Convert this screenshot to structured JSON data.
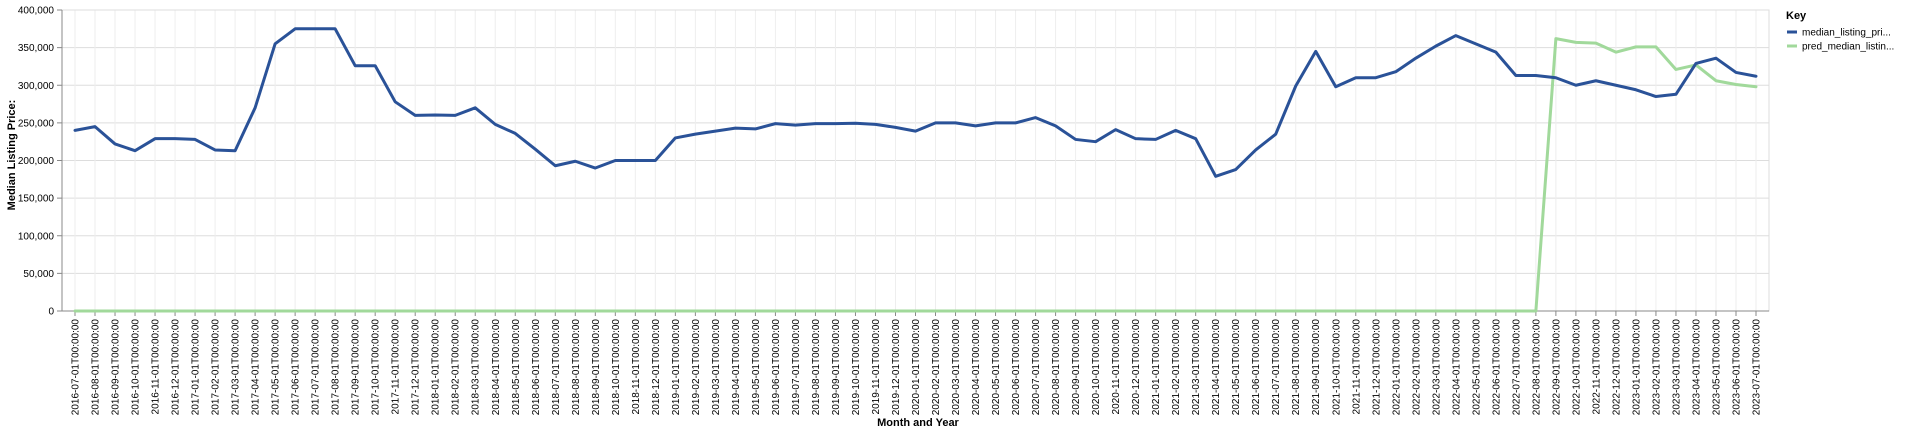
{
  "chart_data": {
    "type": "line",
    "xlabel": "Month and Year",
    "ylabel": "Median Listing Price:",
    "ylim": [
      0,
      400000
    ],
    "yticks": [
      0,
      50000,
      100000,
      150000,
      200000,
      250000,
      300000,
      350000,
      400000
    ],
    "ytick_labels": [
      "0",
      "50,000",
      "100,000",
      "150,000",
      "200,000",
      "250,000",
      "300,000",
      "350,000",
      "400,000"
    ],
    "grid": true,
    "legend": {
      "title": "Key",
      "position": "right"
    },
    "x": [
      "2016-07-01T00:00:00",
      "2016-08-01T00:00:00",
      "2016-09-01T00:00:00",
      "2016-10-01T00:00:00",
      "2016-11-01T00:00:00",
      "2016-12-01T00:00:00",
      "2017-01-01T00:00:00",
      "2017-02-01T00:00:00",
      "2017-03-01T00:00:00",
      "2017-04-01T00:00:00",
      "2017-05-01T00:00:00",
      "2017-06-01T00:00:00",
      "2017-07-01T00:00:00",
      "2017-08-01T00:00:00",
      "2017-09-01T00:00:00",
      "2017-10-01T00:00:00",
      "2017-11-01T00:00:00",
      "2017-12-01T00:00:00",
      "2018-01-01T00:00:00",
      "2018-02-01T00:00:00",
      "2018-03-01T00:00:00",
      "2018-04-01T00:00:00",
      "2018-05-01T00:00:00",
      "2018-06-01T00:00:00",
      "2018-07-01T00:00:00",
      "2018-08-01T00:00:00",
      "2018-09-01T00:00:00",
      "2018-10-01T00:00:00",
      "2018-11-01T00:00:00",
      "2018-12-01T00:00:00",
      "2019-01-01T00:00:00",
      "2019-02-01T00:00:00",
      "2019-03-01T00:00:00",
      "2019-04-01T00:00:00",
      "2019-05-01T00:00:00",
      "2019-06-01T00:00:00",
      "2019-07-01T00:00:00",
      "2019-08-01T00:00:00",
      "2019-09-01T00:00:00",
      "2019-10-01T00:00:00",
      "2019-11-01T00:00:00",
      "2019-12-01T00:00:00",
      "2020-01-01T00:00:00",
      "2020-02-01T00:00:00",
      "2020-03-01T00:00:00",
      "2020-04-01T00:00:00",
      "2020-05-01T00:00:00",
      "2020-06-01T00:00:00",
      "2020-07-01T00:00:00",
      "2020-08-01T00:00:00",
      "2020-09-01T00:00:00",
      "2020-10-01T00:00:00",
      "2020-11-01T00:00:00",
      "2020-12-01T00:00:00",
      "2021-01-01T00:00:00",
      "2021-02-01T00:00:00",
      "2021-03-01T00:00:00",
      "2021-04-01T00:00:00",
      "2021-05-01T00:00:00",
      "2021-06-01T00:00:00",
      "2021-07-01T00:00:00",
      "2021-08-01T00:00:00",
      "2021-09-01T00:00:00",
      "2021-10-01T00:00:00",
      "2021-11-01T00:00:00",
      "2021-12-01T00:00:00",
      "2022-01-01T00:00:00",
      "2022-02-01T00:00:00",
      "2022-03-01T00:00:00",
      "2022-04-01T00:00:00",
      "2022-05-01T00:00:00",
      "2022-06-01T00:00:00",
      "2022-07-01T00:00:00",
      "2022-08-01T00:00:00",
      "2022-09-01T00:00:00",
      "2022-10-01T00:00:00",
      "2022-11-01T00:00:00",
      "2022-12-01T00:00:00",
      "2023-01-01T00:00:00",
      "2023-02-01T00:00:00",
      "2023-03-01T00:00:00",
      "2023-04-01T00:00:00",
      "2023-05-01T00:00:00",
      "2023-06-01T00:00:00",
      "2023-07-01T00:00:00"
    ],
    "series": [
      {
        "name": "median_listing_pri...",
        "color": "#2a5298",
        "values": [
          240000,
          245000,
          222000,
          213000,
          229000,
          229000,
          228000,
          214000,
          213000,
          270000,
          355000,
          375000,
          375000,
          375000,
          326000,
          326000,
          278000,
          260000,
          260500,
          260000,
          270000,
          248000,
          236000,
          215000,
          193000,
          199000,
          190000,
          200000,
          200000,
          200000,
          230000,
          235000,
          239000,
          243000,
          242000,
          249000,
          247000,
          249000,
          249000,
          249500,
          248000,
          244000,
          239000,
          250000,
          250000,
          246000,
          250000,
          250000,
          257000,
          246000,
          228000,
          225000,
          241000,
          229000,
          228000,
          240000,
          229000,
          179000,
          188000,
          214000,
          235000,
          299000,
          345000,
          298000,
          310000,
          310000,
          318000,
          336000,
          352000,
          366000,
          355000,
          344000,
          313000,
          313000,
          310000,
          300000,
          306000,
          300000,
          294000,
          285000,
          288000,
          329000,
          336000,
          317000,
          312000
        ]
      },
      {
        "name": "pred_median_listin...",
        "color": "#a1d99b",
        "values": [
          0,
          0,
          0,
          0,
          0,
          0,
          0,
          0,
          0,
          0,
          0,
          0,
          0,
          0,
          0,
          0,
          0,
          0,
          0,
          0,
          0,
          0,
          0,
          0,
          0,
          0,
          0,
          0,
          0,
          0,
          0,
          0,
          0,
          0,
          0,
          0,
          0,
          0,
          0,
          0,
          0,
          0,
          0,
          0,
          0,
          0,
          0,
          0,
          0,
          0,
          0,
          0,
          0,
          0,
          0,
          0,
          0,
          0,
          0,
          0,
          0,
          0,
          0,
          0,
          0,
          0,
          0,
          0,
          0,
          0,
          0,
          0,
          0,
          0,
          362000,
          357000,
          356000,
          344000,
          351000,
          351000,
          321000,
          327000,
          306000,
          301000,
          298000
        ]
      }
    ]
  }
}
